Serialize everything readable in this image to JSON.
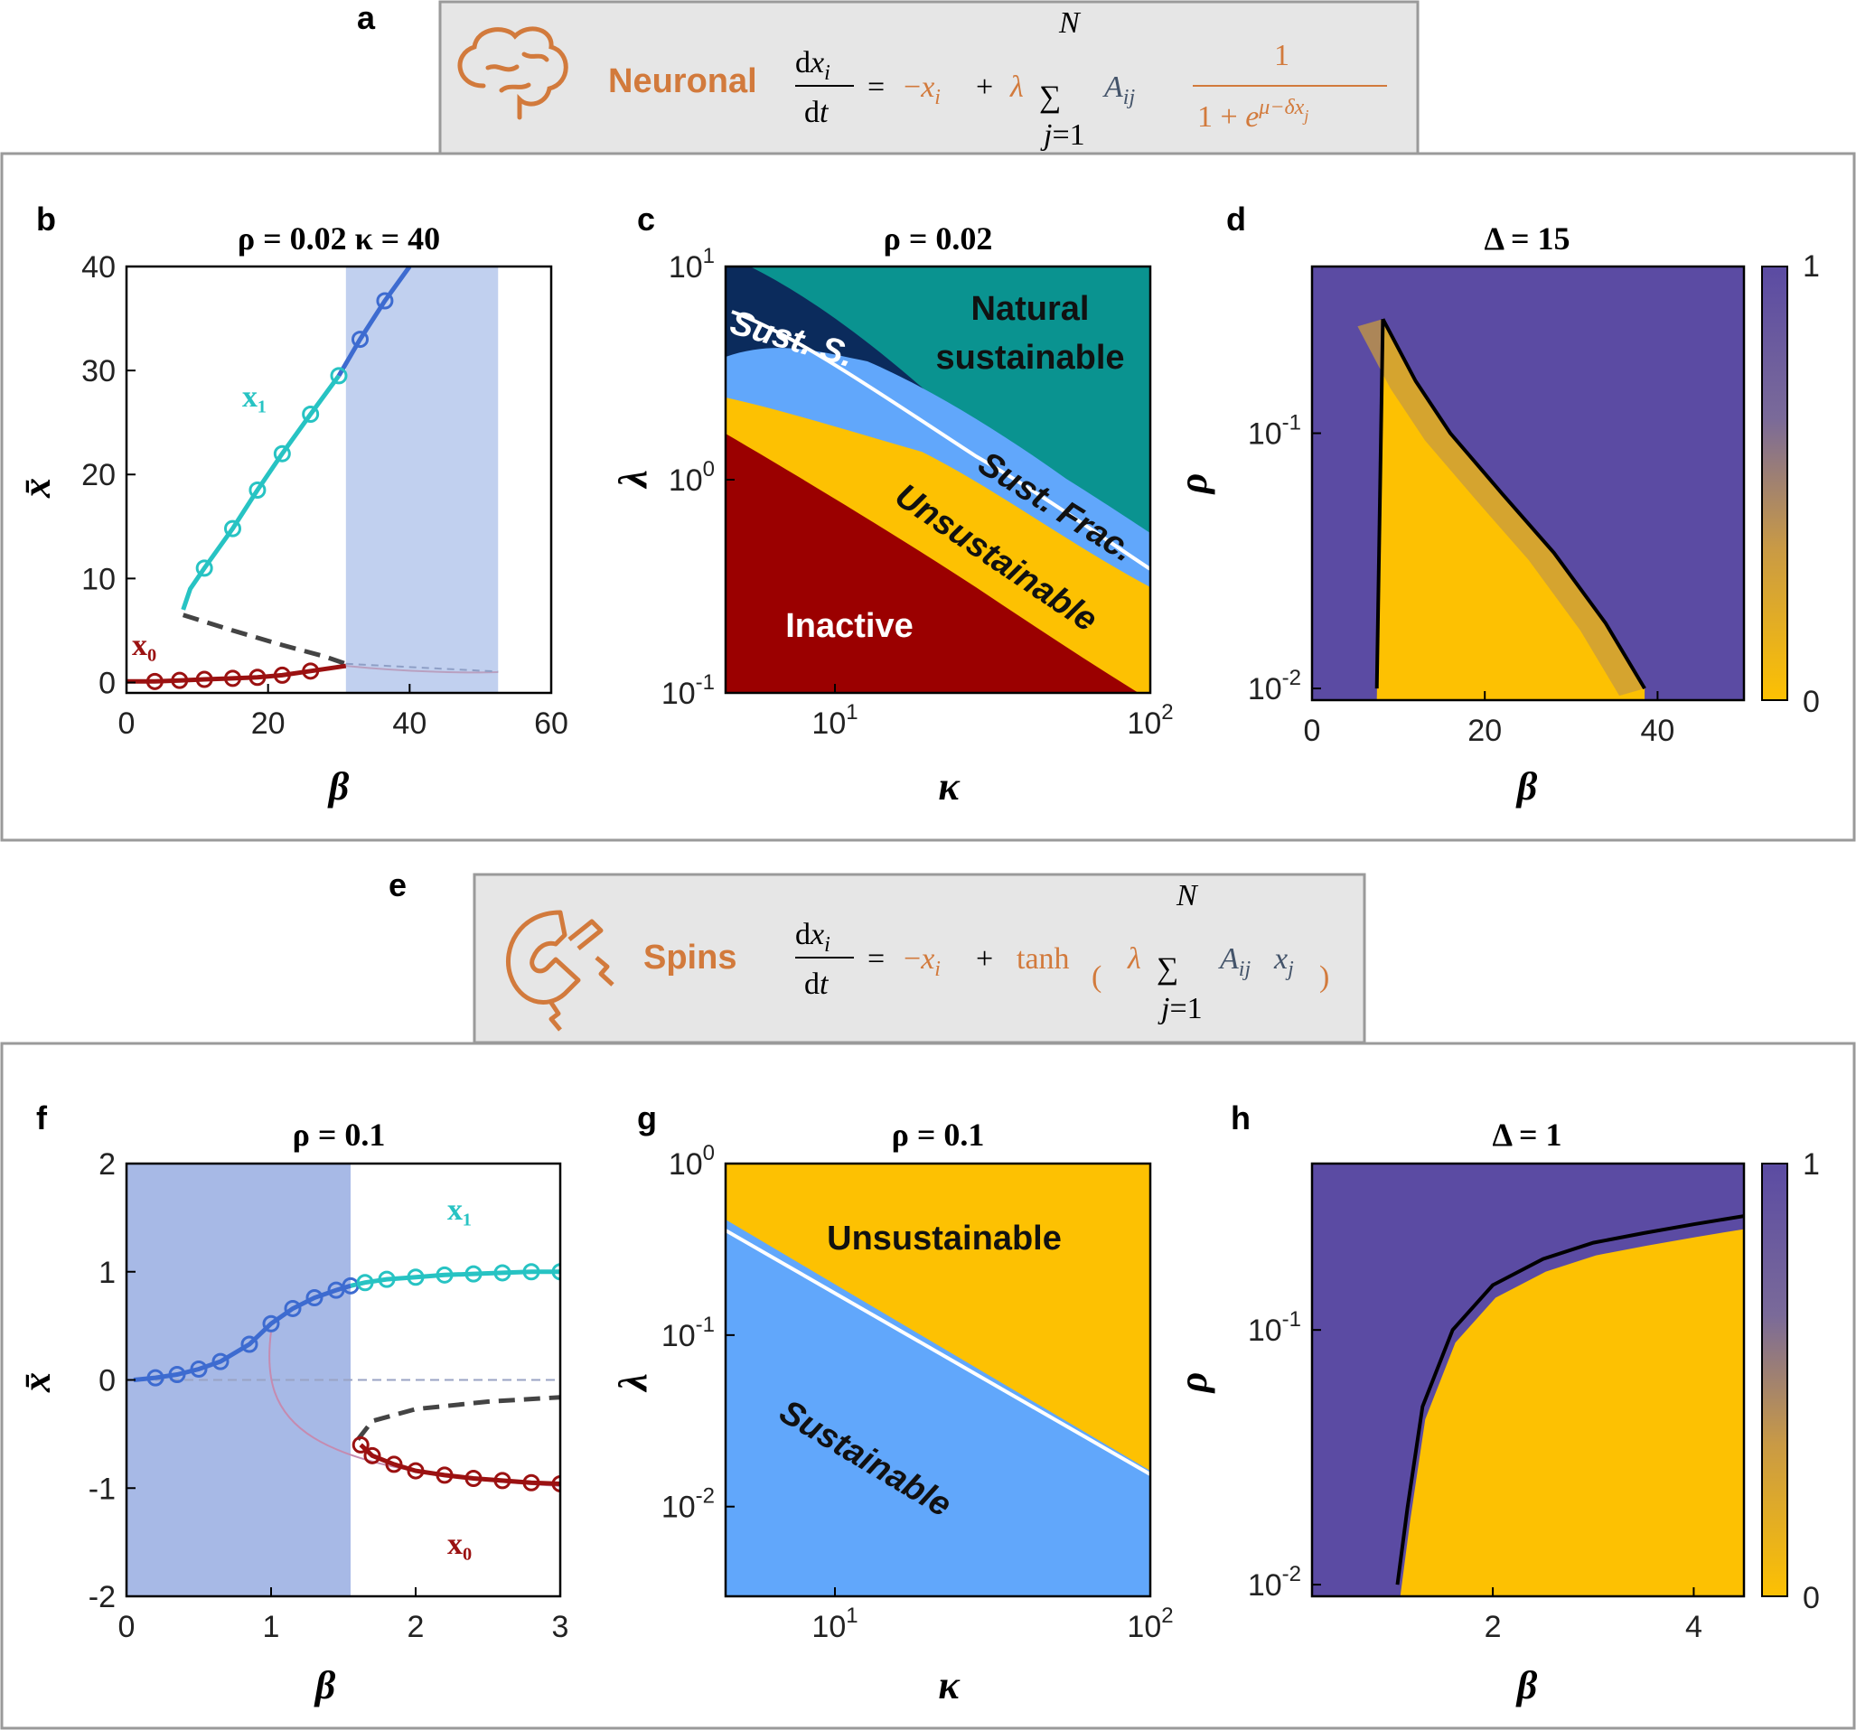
{
  "panels": {
    "a": {
      "label": "a",
      "model": "Neuronal",
      "equation": "dx_i/dt = −x_i + λ Σ_{j=1}^{N} A_ij 1/(1 + e^{μ−δx_j})"
    },
    "b": {
      "label": "b",
      "title": "ρ = 0.02   κ = 40",
      "xlabel": "β",
      "ylabel": "x̄",
      "curve_upper": "x₁",
      "curve_lower": "x₀"
    },
    "c": {
      "label": "c",
      "title": "ρ = 0.02",
      "xlabel": "κ",
      "ylabel": "λ",
      "regions": [
        "Natural",
        "sustainable",
        "Sust. S.",
        "Sust. Frac.",
        "Unsustainable",
        "Inactive"
      ]
    },
    "d": {
      "label": "d",
      "title": "Δ = 15",
      "xlabel": "β",
      "ylabel": "ρ"
    },
    "e": {
      "label": "e",
      "model": "Spins",
      "equation": "dx_i/dt = −x_i + tanh(λ Σ_{j=1}^{N} A_ij x_j)"
    },
    "f": {
      "label": "f",
      "title": "ρ = 0.1",
      "xlabel": "β",
      "ylabel": "x̄",
      "curve_upper": "x₁",
      "curve_lower": "x₀"
    },
    "g": {
      "label": "g",
      "title": "ρ = 0.1",
      "xlabel": "κ",
      "ylabel": "λ",
      "regions": [
        "Unsustainable",
        "Sustainable"
      ]
    },
    "h": {
      "label": "h",
      "title": "Δ = 1",
      "xlabel": "β",
      "ylabel": "ρ"
    }
  },
  "colors": {
    "cyan": "#27c3c3",
    "blue": "#3d6bd0",
    "darkred": "#9b1111",
    "shade": "#c1d0ef",
    "shade_f": "#a7b9e6",
    "teal": "#0a9390",
    "navy": "#0b2b5c",
    "lightblue": "#61a7fb",
    "gold": "#fdc102",
    "red": "#9b0000",
    "purple": "#5b4ba3"
  },
  "chart_data": [
    {
      "panel": "b",
      "type": "line",
      "title": "ρ = 0.02  κ = 40",
      "xlabel": "β",
      "ylabel": "x̄",
      "xlim": [
        0,
        60
      ],
      "ylim": [
        -1,
        40
      ],
      "xticks": [
        "0",
        "20",
        "40",
        "60"
      ],
      "yticks": [
        "0",
        "10",
        "20",
        "30",
        "40"
      ],
      "shaded_range": [
        31,
        52.5
      ],
      "series": [
        {
          "name": "x1 (cyan branch)",
          "x": [
            8,
            9,
            11,
            15,
            18.5,
            22,
            26,
            30
          ],
          "y": [
            7,
            9,
            11,
            14.8,
            18.5,
            22,
            25.8,
            29.5
          ]
        },
        {
          "name": "x1 (blue, extended)",
          "x": [
            30,
            33,
            36.5,
            40
          ],
          "y": [
            29.5,
            33,
            36.7,
            40
          ]
        },
        {
          "name": "x0",
          "x": [
            0,
            4,
            7.5,
            11,
            15,
            18.5,
            22,
            26,
            31
          ],
          "y": [
            0.1,
            0.1,
            0.2,
            0.3,
            0.4,
            0.5,
            0.7,
            1.1,
            1.6
          ]
        },
        {
          "name": "unstable",
          "x": [
            8,
            15,
            22,
            28,
            31
          ],
          "y": [
            6.5,
            5.0,
            3.6,
            2.5,
            1.8
          ]
        }
      ],
      "markers_x1": [
        11,
        15,
        18.5,
        22,
        26,
        30,
        33,
        36.5
      ],
      "markers_x0": [
        4,
        7.5,
        11,
        15,
        18.5,
        22,
        26
      ]
    },
    {
      "panel": "c",
      "type": "area",
      "title": "ρ = 0.02",
      "xlabel": "κ",
      "ylabel": "λ",
      "xscale": "log",
      "yscale": "log",
      "xlim": [
        4.5,
        100
      ],
      "ylim": [
        0.1,
        10
      ],
      "xticks": [
        "10^1",
        "10^2"
      ],
      "yticks": [
        "10^-1",
        "10^0",
        "10^1"
      ],
      "regions": [
        "Natural sustainable",
        "Sust. S.",
        "Sust. Frac.",
        "Unsustainable",
        "Inactive"
      ]
    },
    {
      "panel": "d",
      "type": "heatmap",
      "title": "Δ = 15",
      "xlabel": "β",
      "ylabel": "ρ",
      "xlim": [
        0,
        50
      ],
      "ylim": [
        0.009,
        0.45
      ],
      "yscale": "log",
      "xticks": [
        "0",
        "20",
        "40"
      ],
      "yticks": [
        "10^-2",
        "10^-1"
      ],
      "colorbar": {
        "min": 0,
        "max": 1,
        "ticks": [
          "0",
          "1"
        ]
      },
      "boundary_left": {
        "beta": [
          7.5,
          8.2
        ],
        "rho": [
          0.01,
          0.28
        ]
      },
      "boundary_right": {
        "beta": [
          8.2,
          12,
          16,
          22,
          28,
          34,
          38.5
        ],
        "rho": [
          0.28,
          0.16,
          0.1,
          0.058,
          0.034,
          0.018,
          0.01
        ]
      }
    },
    {
      "panel": "f",
      "type": "line",
      "title": "ρ = 0.1",
      "xlabel": "β",
      "ylabel": "x̄",
      "xlim": [
        0,
        3
      ],
      "ylim": [
        -2,
        2
      ],
      "xticks": [
        "0",
        "1",
        "2",
        "3"
      ],
      "yticks": [
        "-2",
        "-1",
        "0",
        "1",
        "2"
      ],
      "shaded_range": [
        0,
        1.55
      ],
      "series": [
        {
          "name": "blue",
          "x": [
            0.05,
            0.2,
            0.35,
            0.5,
            0.65,
            0.85,
            1.0,
            1.15,
            1.3,
            1.45,
            1.55
          ],
          "y": [
            0.0,
            0.02,
            0.05,
            0.1,
            0.17,
            0.33,
            0.52,
            0.66,
            0.76,
            0.83,
            0.87
          ]
        },
        {
          "name": "x1",
          "x": [
            1.55,
            1.65,
            1.8,
            2.0,
            2.2,
            2.4,
            2.6,
            2.8,
            3.0
          ],
          "y": [
            0.87,
            0.9,
            0.93,
            0.95,
            0.97,
            0.98,
            0.99,
            1.0,
            1.0
          ]
        },
        {
          "name": "x0",
          "x": [
            1.62,
            1.7,
            1.85,
            2.0,
            2.2,
            2.4,
            2.6,
            2.8,
            3.0
          ],
          "y": [
            -0.6,
            -0.7,
            -0.78,
            -0.84,
            -0.88,
            -0.91,
            -0.93,
            -0.95,
            -0.96
          ]
        },
        {
          "name": "unstable",
          "x": [
            1.6,
            1.7,
            2.0,
            2.5,
            3.0
          ],
          "y": [
            -0.55,
            -0.38,
            -0.27,
            -0.2,
            -0.16
          ]
        }
      ]
    },
    {
      "panel": "g",
      "type": "area",
      "title": "ρ = 0.1",
      "xlabel": "κ",
      "ylabel": "λ",
      "xscale": "log",
      "yscale": "log",
      "xlim": [
        4.5,
        100
      ],
      "ylim": [
        0.003,
        1
      ],
      "xticks": [
        "10^1",
        "10^2"
      ],
      "yticks": [
        "10^-2",
        "10^-1",
        "10^0"
      ],
      "regions": [
        "Unsustainable",
        "Sustainable"
      ]
    },
    {
      "panel": "h",
      "type": "heatmap",
      "title": "Δ = 1",
      "xlabel": "β",
      "ylabel": "ρ",
      "xlim": [
        0.2,
        4.5
      ],
      "yscale": "log",
      "ylim": [
        0.009,
        0.45
      ],
      "xticks": [
        "2",
        "4"
      ],
      "yticks": [
        "10^-2",
        "10^-1"
      ],
      "colorbar": {
        "min": 0,
        "max": 1,
        "ticks": [
          "0",
          "1"
        ]
      },
      "boundary": {
        "beta": [
          1.05,
          1.15,
          1.3,
          1.6,
          2.0,
          2.5,
          3.0,
          3.5,
          4.0,
          4.5
        ],
        "rho": [
          0.01,
          0.02,
          0.05,
          0.1,
          0.15,
          0.19,
          0.22,
          0.24,
          0.26,
          0.28
        ]
      }
    }
  ]
}
